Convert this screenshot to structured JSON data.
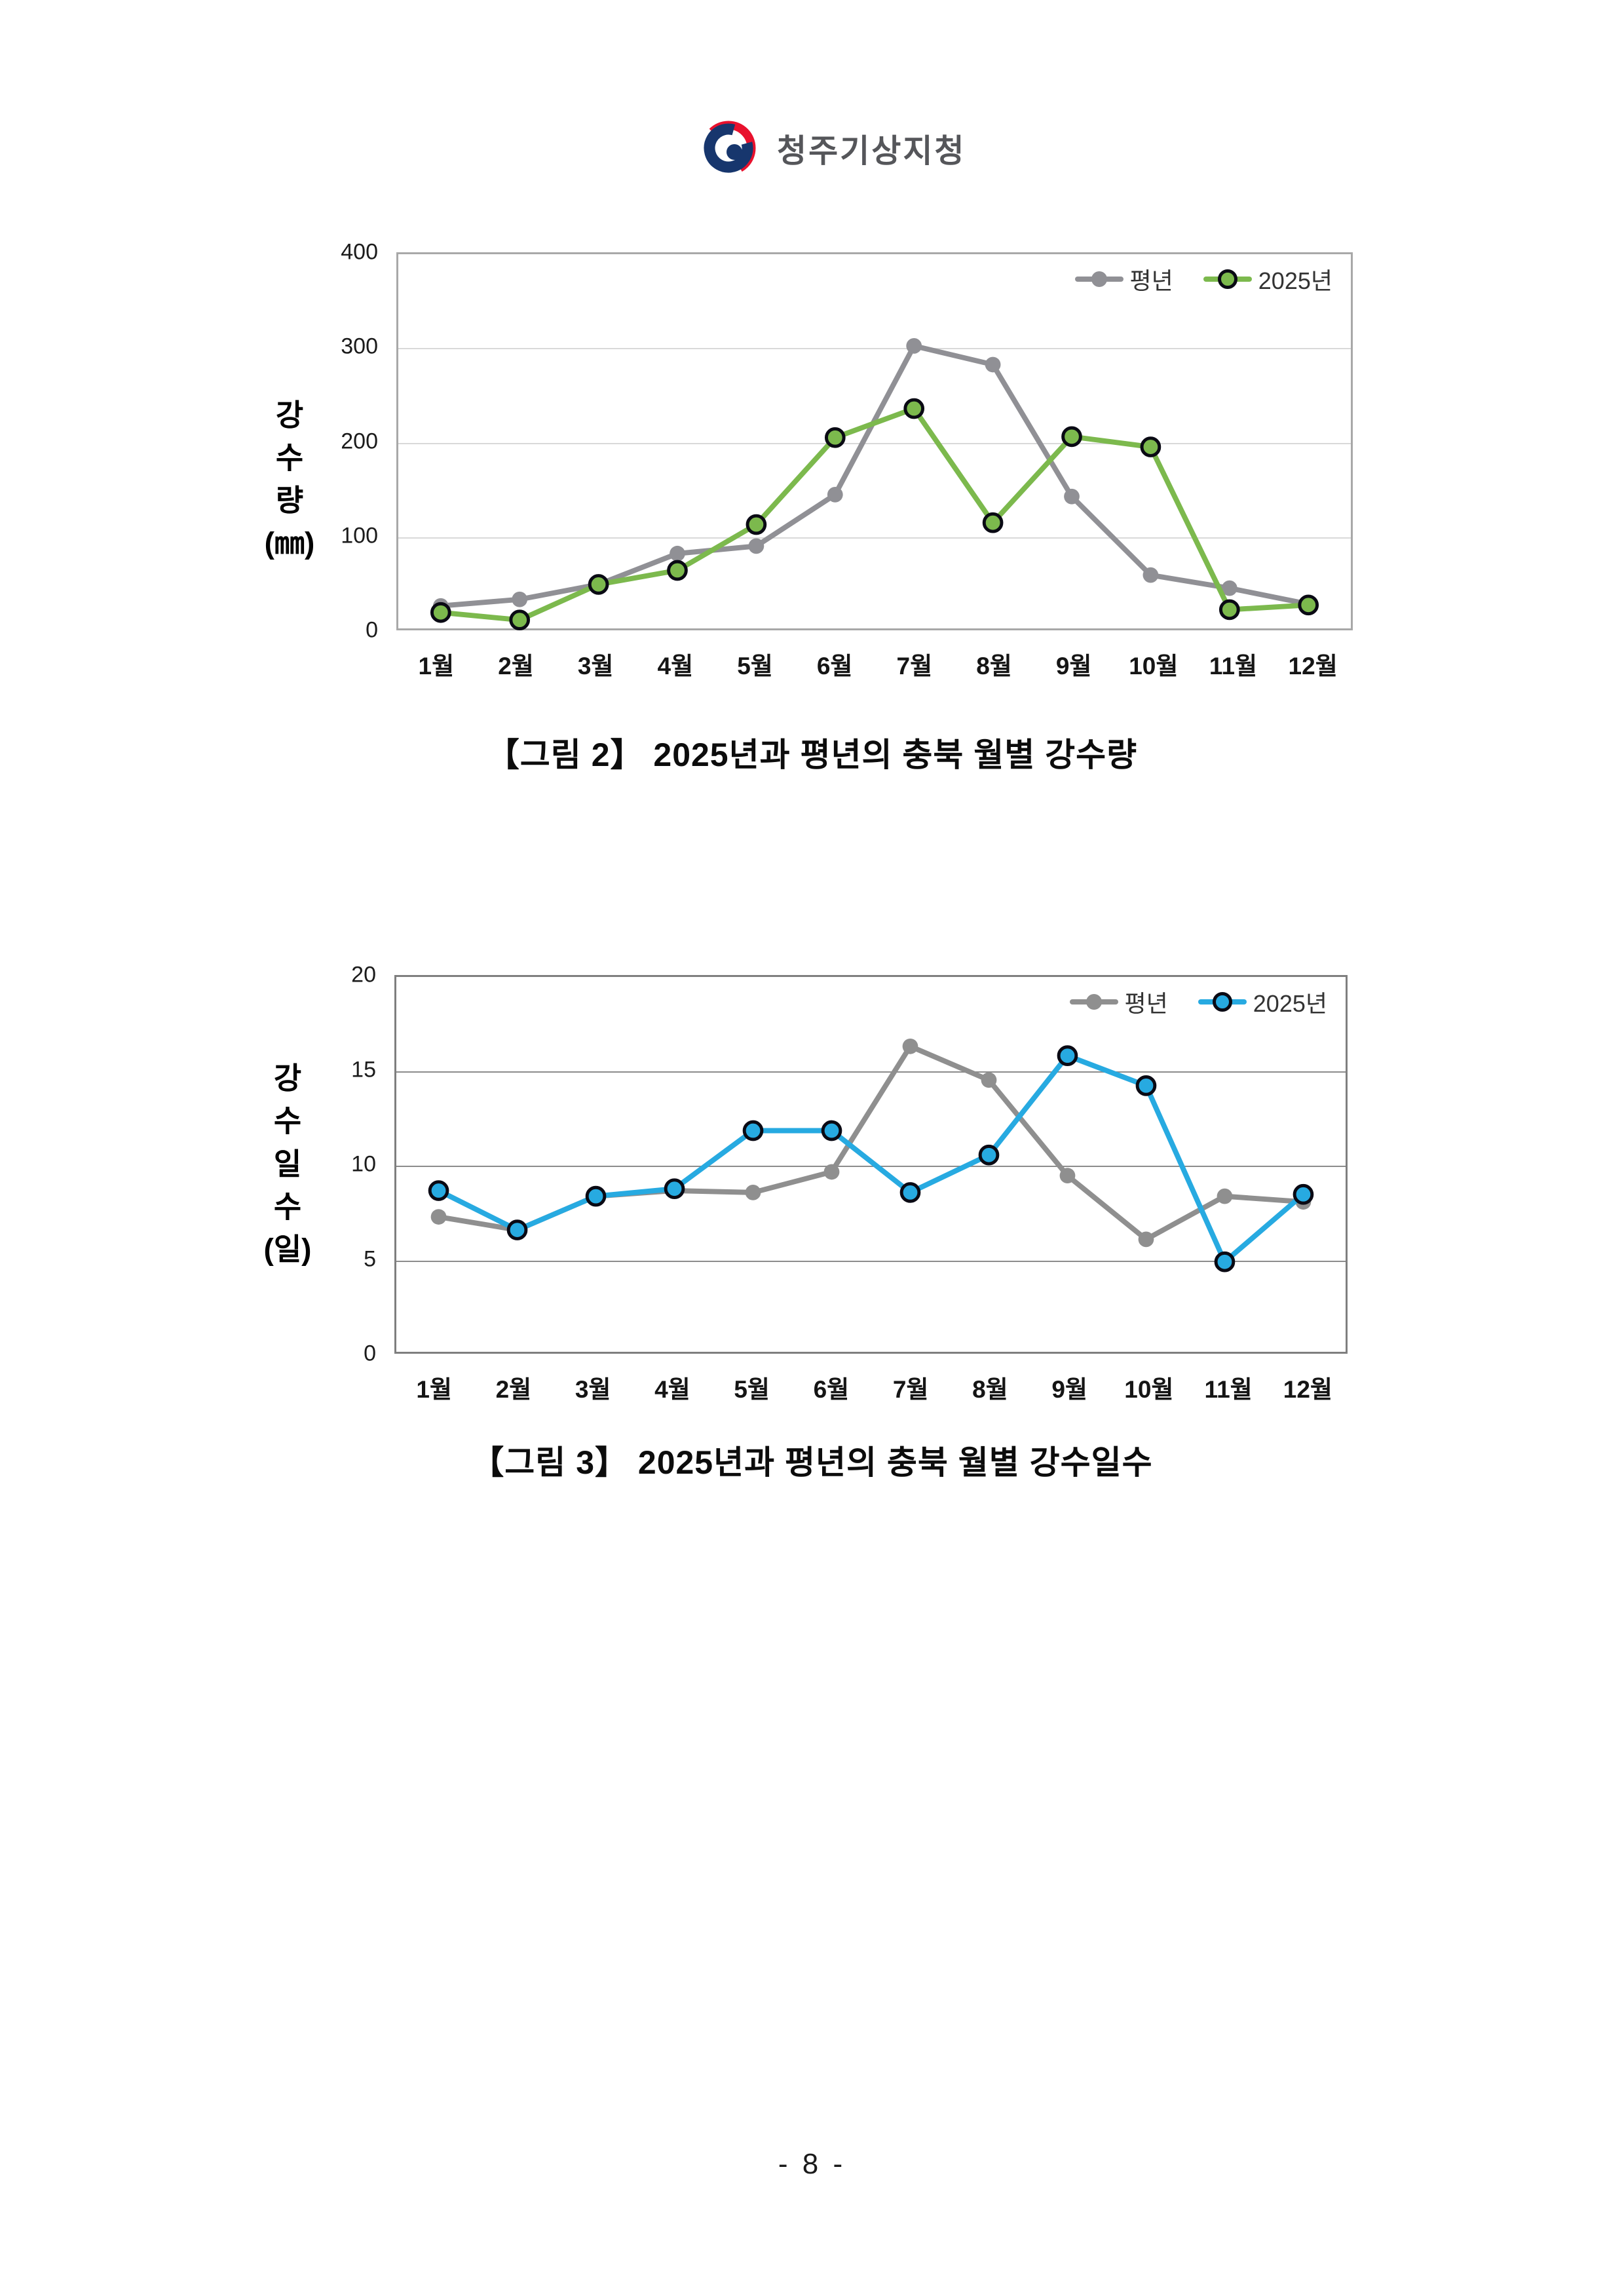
{
  "page": {
    "background": "#ffffff"
  },
  "header": {
    "logo_text": "청주기상지청",
    "emblem": {
      "navy": "#17366D",
      "red": "#E8112D"
    }
  },
  "footer": {
    "page_label": "- 8 -"
  },
  "chart_data": [
    {
      "type": "line",
      "title": "【그림 2】 2025년과 평년의 충북 월별 강수량",
      "categories": [
        "1월",
        "2월",
        "3월",
        "4월",
        "5월",
        "6월",
        "7월",
        "8월",
        "9월",
        "10월",
        "11월",
        "12월"
      ],
      "series": [
        {
          "name": "평년",
          "color": "#909095",
          "marker": "dot",
          "values": [
            24,
            31,
            47,
            80,
            88,
            143,
            302,
            282,
            141,
            57,
            43,
            26
          ]
        },
        {
          "name": "2025년",
          "color": "#7CB94D",
          "marker": "ring",
          "values": [
            17,
            9,
            47,
            62,
            111,
            204,
            235,
            113,
            205,
            194,
            20,
            25
          ]
        }
      ],
      "ylabel": "강수량(㎜)",
      "ylabel_lines": [
        "강",
        "수",
        "량",
        "(㎜)"
      ],
      "ylim": [
        0,
        400
      ],
      "yticks": [
        0,
        100,
        200,
        300,
        400
      ],
      "grid": true,
      "grid_color": "#D9D9D9",
      "box_color": "#A8A8A8",
      "legend_position": "top-right"
    },
    {
      "type": "line",
      "title": "【그림 3】 2025년과 평년의 충북 월별 강수일수",
      "categories": [
        "1월",
        "2월",
        "3월",
        "4월",
        "5월",
        "6월",
        "7월",
        "8월",
        "9월",
        "10월",
        "11월",
        "12월"
      ],
      "series": [
        {
          "name": "평년",
          "color": "#8F8F8F",
          "marker": "dot",
          "values": [
            7.2,
            6.5,
            8.3,
            8.6,
            8.5,
            9.6,
            16.3,
            14.5,
            9.4,
            6.0,
            8.3,
            8.0
          ]
        },
        {
          "name": "2025년",
          "color": "#27AAE1",
          "marker": "ring",
          "values": [
            8.6,
            6.5,
            8.3,
            8.7,
            11.8,
            11.8,
            8.5,
            10.5,
            15.8,
            14.2,
            4.8,
            8.4
          ]
        }
      ],
      "ylabel": "강수일수(일)",
      "ylabel_lines": [
        "강",
        "수",
        "일",
        "수",
        "(일)"
      ],
      "ylim": [
        0,
        20
      ],
      "yticks": [
        0,
        5,
        10,
        15,
        20
      ],
      "grid": true,
      "grid_color": "#8C8C8C",
      "box_color": "#7F7F7F",
      "legend_position": "top-right"
    }
  ]
}
